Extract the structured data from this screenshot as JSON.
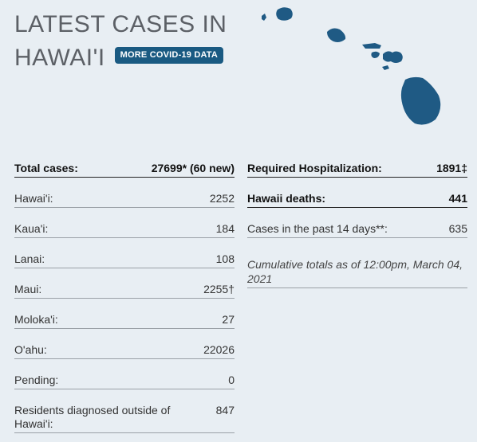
{
  "header": {
    "title_line1": "LATEST CASES IN",
    "title_line2": "HAWAI'I",
    "badge_label": "MORE COVID-19 DATA"
  },
  "colors": {
    "background": "#e8eef3",
    "accent": "#1a5a82",
    "map_fill": "#1f5a84"
  },
  "left_table": {
    "total": {
      "label": "Total cases:",
      "value": "27699* (60 new)"
    },
    "rows": [
      {
        "label": "Hawai'i:",
        "value": "2252"
      },
      {
        "label": "Kaua'i:",
        "value": "184"
      },
      {
        "label": "Lanai:",
        "value": "108"
      },
      {
        "label": "Maui:",
        "value": "2255†"
      },
      {
        "label": "Moloka'i:",
        "value": "27"
      },
      {
        "label": "O'ahu:",
        "value": "22026"
      },
      {
        "label": "Pending:",
        "value": "0"
      },
      {
        "label": "Residents diagnosed outside of Hawai'i:",
        "value": "847"
      }
    ]
  },
  "right_table": {
    "hospitalization": {
      "label": "Required Hospitalization:",
      "value": "1891‡"
    },
    "deaths": {
      "label": "Hawaii deaths:",
      "value": "441"
    },
    "past14": {
      "label": "Cases in the past 14 days**:",
      "value": "635"
    },
    "note": "Cumulative totals as of 12:00pm, March 04, 2021"
  }
}
